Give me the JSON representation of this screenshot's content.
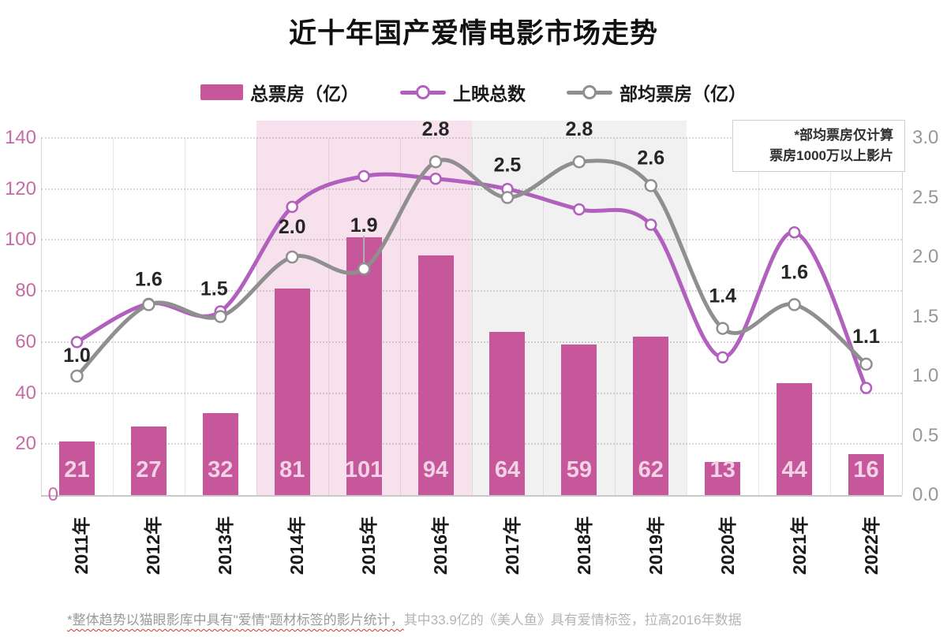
{
  "title": "近十年国产爱情电影市场走势",
  "legend": [
    {
      "label": "总票房（亿）",
      "type": "bar",
      "color": "#c6579b"
    },
    {
      "label": "上映总数",
      "type": "line",
      "color": "#b260be"
    },
    {
      "label": "部均票房（亿）",
      "type": "line",
      "color": "#8f8f8f"
    }
  ],
  "annotation_box": {
    "line1": "*部均票房仅计算",
    "line2": "票房1000万以上影片"
  },
  "footnote": {
    "underlined": "*整体趋势以猫眼影库中具有\"爱情\"题材标签的影片统计，",
    "rest": "其中33.9亿的《美人鱼》具有爱情标签，拉高2016年数据"
  },
  "chart_data": {
    "type": "bar",
    "categories": [
      "2011年",
      "2012年",
      "2013年",
      "2014年",
      "2015年",
      "2016年",
      "2017年",
      "2018年",
      "2019年",
      "2020年",
      "2021年",
      "2022年"
    ],
    "series": [
      {
        "name": "总票房（亿）",
        "type": "bar",
        "axis": "left",
        "color": "#c6579b",
        "values": [
          21,
          27,
          32,
          81,
          101,
          94,
          64,
          59,
          62,
          13,
          44,
          16
        ]
      },
      {
        "name": "上映总数",
        "type": "line",
        "axis": "left",
        "color": "#b260be",
        "values": [
          60,
          75,
          72,
          113,
          125,
          124,
          120,
          112,
          106,
          54,
          103,
          42
        ]
      },
      {
        "name": "部均票房（亿）",
        "type": "line",
        "axis": "right",
        "color": "#8f8f8f",
        "values": [
          1.0,
          1.6,
          1.5,
          2.0,
          1.9,
          2.8,
          2.5,
          2.8,
          2.6,
          1.4,
          1.6,
          1.1
        ],
        "labels": [
          "1.0",
          "1.6",
          "1.5",
          "2.0",
          "1.9",
          "2.8",
          "2.5",
          "2.8",
          "2.6",
          "1.4",
          "1.6",
          "1.1"
        ]
      }
    ],
    "left_axis": {
      "ticks": [
        "0",
        "20",
        "40",
        "60",
        "80",
        "100",
        "120",
        "140"
      ],
      "min": 0,
      "max": 140
    },
    "right_axis": {
      "ticks": [
        "0.0",
        "0.5",
        "1.0",
        "1.5",
        "2.0",
        "2.5",
        "3.0"
      ],
      "min": 0,
      "max": 3.0
    },
    "highlight_bands": [
      {
        "from_category": "2014年",
        "to_category": "2016年",
        "color": "#f7e1ec"
      },
      {
        "from_category": "2017年",
        "to_category": "2019年",
        "color": "#f1f1f1"
      }
    ],
    "grid": "horizontal-dotted"
  }
}
